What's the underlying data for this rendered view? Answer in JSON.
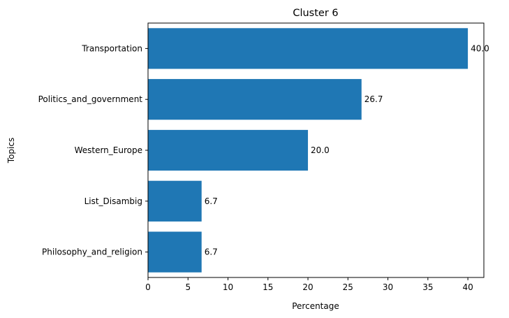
{
  "chart_data": {
    "type": "bar",
    "orientation": "horizontal",
    "title": "Cluster 6",
    "xlabel": "Percentage",
    "ylabel": "Topics",
    "categories": [
      "Transportation",
      "Politics_and_government",
      "Western_Europe",
      "List_Disambig",
      "Philosophy_and_religion"
    ],
    "values": [
      40.0,
      26.7,
      20.0,
      6.7,
      6.7
    ],
    "data_labels": [
      "40.0",
      "26.7",
      "20.0",
      "6.7",
      "6.7"
    ],
    "xlim": [
      0,
      42
    ],
    "xticks": [
      0,
      5,
      10,
      15,
      20,
      25,
      30,
      35,
      40
    ],
    "grid": false,
    "bar_color": "#1f77b4"
  }
}
